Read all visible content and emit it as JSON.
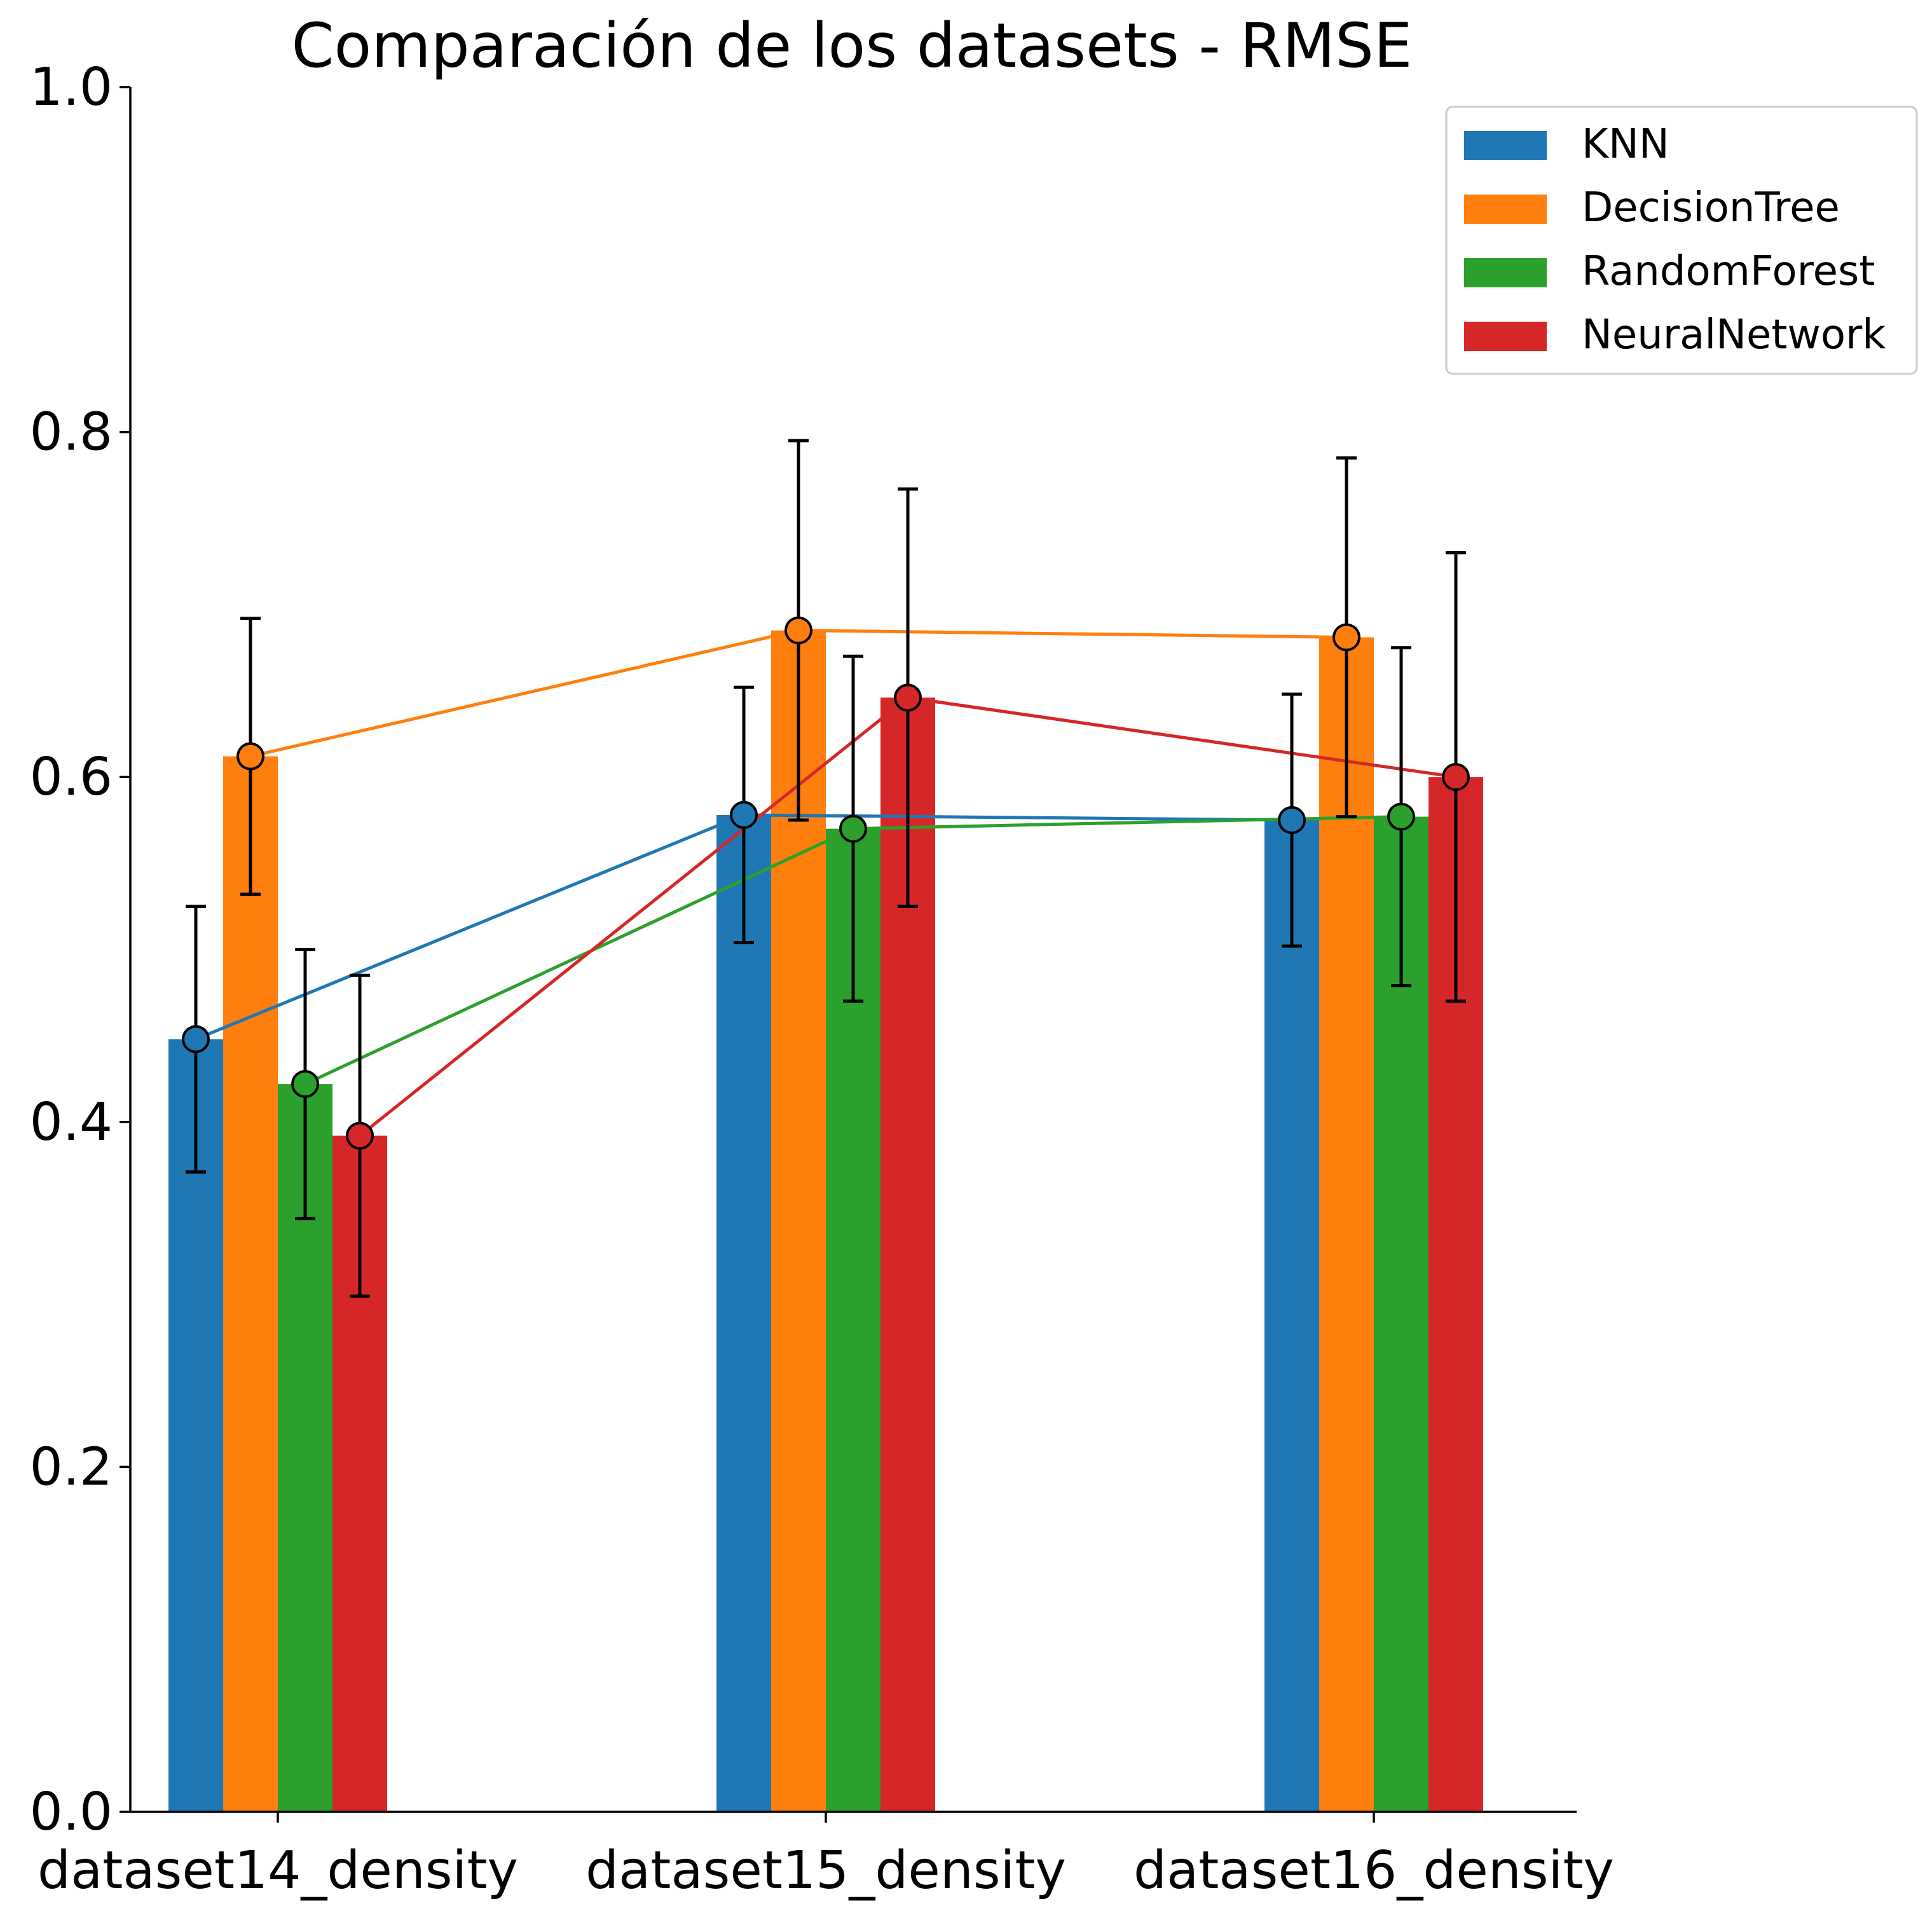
{
  "chart_data": {
    "type": "bar",
    "title": "Comparación de los datasets - RMSE",
    "xlabel": "",
    "ylabel": "",
    "ylim": [
      0,
      1.0
    ],
    "yticks": [
      0.0,
      0.2,
      0.4,
      0.6,
      0.8,
      1.0
    ],
    "ytick_labels": [
      "0.0",
      "0.2",
      "0.4",
      "0.6",
      "0.8",
      "1.0"
    ],
    "categories": [
      "dataset14_density",
      "dataset15_density",
      "dataset16_density"
    ],
    "legend_position": "top-right",
    "grid": false,
    "series": [
      {
        "name": "KNN",
        "color": "#1f77b4",
        "values": [
          0.448,
          0.578,
          0.575
        ],
        "errors": [
          0.077,
          0.074,
          0.073
        ]
      },
      {
        "name": "DecisionTree",
        "color": "#ff7f0e",
        "values": [
          0.612,
          0.685,
          0.681
        ],
        "errors": [
          0.08,
          0.11,
          0.104
        ]
      },
      {
        "name": "RandomForest",
        "color": "#2ca02c",
        "values": [
          0.422,
          0.57,
          0.577
        ],
        "errors": [
          0.078,
          0.1,
          0.098
        ]
      },
      {
        "name": "NeuralNetwork",
        "color": "#d62728",
        "values": [
          0.392,
          0.646,
          0.6
        ],
        "errors": [
          0.093,
          0.121,
          0.13
        ]
      }
    ]
  }
}
